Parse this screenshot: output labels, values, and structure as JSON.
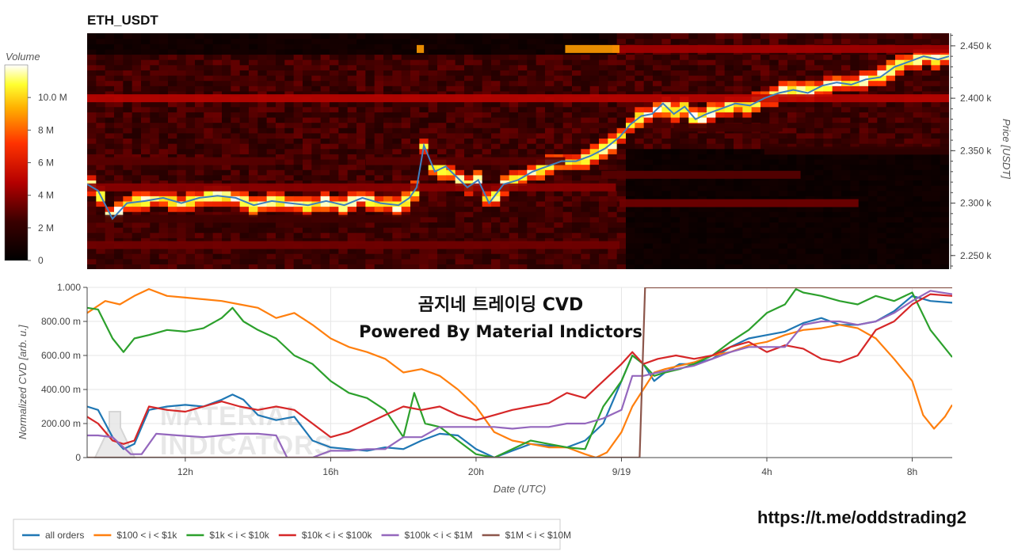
{
  "title": "ETH_USDT",
  "overlay": {
    "line1": "곰지네 트레이딩 CVD",
    "line2": "Powered By Material Indictors"
  },
  "url": "https://t.me/oddstrading2",
  "watermark": [
    "MATERIAL",
    "INDICATORS"
  ],
  "colorbar": {
    "title": "Volume",
    "ticks": [
      "0",
      "2 M",
      "4 M",
      "6 M",
      "8 M",
      "10.0 M"
    ],
    "values": [
      0,
      2,
      4,
      6,
      8,
      10
    ],
    "max": 12
  },
  "heatmap_axis": {
    "ylabel": "Price [USDT]",
    "ticks": [
      "2.250 k",
      "2.300 k",
      "2.350 k",
      "2.400 k",
      "2.450 k"
    ],
    "tick_values": [
      2250,
      2300,
      2350,
      2400,
      2450
    ],
    "ylim": [
      2237,
      2462
    ]
  },
  "cvd_axis": {
    "ylabel": "Normalized CVD [arb. u.]",
    "xlabel": "Date (UTC)",
    "yticks": [
      "0",
      "200.00 m",
      "400.00 m",
      "600.00 m",
      "800.00 m",
      "1.000"
    ],
    "ytick_values": [
      0,
      0.2,
      0.4,
      0.6,
      0.8,
      1.0
    ],
    "xticks": [
      "12h",
      "16h",
      "20h",
      "9/19",
      "4h",
      "8h"
    ],
    "xtick_values": [
      12,
      16,
      20,
      24,
      28,
      32
    ]
  },
  "chart_data": [
    {
      "type": "heatmap",
      "title": "ETH_USDT",
      "ylabel": "Price [USDT]",
      "xlim": [
        9.3,
        33.1
      ],
      "ylim": [
        2237,
        2462
      ],
      "price_path": {
        "x": [
          9.3,
          9.6,
          10.0,
          10.4,
          10.9,
          11.4,
          11.9,
          12.4,
          12.9,
          13.4,
          13.9,
          14.4,
          14.9,
          15.4,
          15.9,
          16.4,
          16.9,
          17.4,
          17.9,
          18.2,
          18.4,
          18.6,
          18.9,
          19.2,
          19.5,
          19.8,
          20.1,
          20.4,
          20.8,
          21.2,
          21.6,
          22.0,
          22.4,
          22.8,
          23.2,
          23.6,
          24.0,
          24.3,
          24.6,
          24.9,
          25.2,
          25.5,
          25.8,
          26.1,
          26.4,
          26.8,
          27.2,
          27.6,
          28.0,
          28.4,
          28.8,
          29.2,
          29.6,
          30.0,
          30.4,
          30.8,
          31.2,
          31.6,
          32.0,
          32.4,
          32.8,
          33.1
        ],
        "y": [
          2318,
          2312,
          2285,
          2300,
          2302,
          2305,
          2300,
          2305,
          2307,
          2305,
          2298,
          2302,
          2300,
          2298,
          2302,
          2298,
          2305,
          2300,
          2298,
          2305,
          2315,
          2355,
          2330,
          2335,
          2325,
          2315,
          2322,
          2300,
          2318,
          2322,
          2330,
          2335,
          2340,
          2340,
          2345,
          2352,
          2363,
          2375,
          2383,
          2385,
          2395,
          2385,
          2392,
          2380,
          2385,
          2390,
          2395,
          2393,
          2400,
          2405,
          2408,
          2405,
          2412,
          2415,
          2413,
          2418,
          2420,
          2430,
          2435,
          2440,
          2437,
          2440
        ]
      },
      "levels": [
        {
          "price": 2400,
          "x": [
            9.3,
            33.1
          ],
          "value": 5
        },
        {
          "price": 2447,
          "x": [
            23.8,
            33.1
          ],
          "value": 4.5
        },
        {
          "price": 2447,
          "x": [
            22.5,
            24.0
          ],
          "value": 9
        },
        {
          "price": 2447,
          "x": [
            18.4,
            18.6
          ],
          "value": 9
        },
        {
          "price": 2315,
          "x": [
            9.3,
            23.9
          ],
          "value": 4
        },
        {
          "price": 2300,
          "x": [
            24.0,
            30.6
          ],
          "value": 3.5
        },
        {
          "price": 2260,
          "x": [
            9.3,
            24.0
          ],
          "value": 3.5
        },
        {
          "price": 2340,
          "x": [
            9.3,
            14.5
          ],
          "value": 3
        },
        {
          "price": 2340,
          "x": [
            17.0,
            22.5
          ],
          "value": 3
        },
        {
          "price": 2327,
          "x": [
            23.5,
            29.0
          ],
          "value": 3
        },
        {
          "price": 2372,
          "x": [
            25.5,
            28.5
          ],
          "value": 2.5
        },
        {
          "price": 2285,
          "x": [
            9.3,
            18.5
          ],
          "value": 2.5
        },
        {
          "price": 2350,
          "x": [
            28.0,
            33.1
          ],
          "value": 2
        }
      ]
    },
    {
      "type": "line",
      "xlabel": "Date (UTC)",
      "ylabel": "Normalized CVD [arb. u.]",
      "xlim": [
        9.3,
        33.1
      ],
      "ylim": [
        0,
        1.0
      ],
      "series": [
        {
          "name": "all orders",
          "color": "#1f77b4",
          "x": [
            9.3,
            9.6,
            10.0,
            10.3,
            10.6,
            11.0,
            11.5,
            12.0,
            12.5,
            13.0,
            13.3,
            13.6,
            14.0,
            14.5,
            15.0,
            15.5,
            16.0,
            16.5,
            17.0,
            17.5,
            18.0,
            18.5,
            19.0,
            19.5,
            20.0,
            20.5,
            21.0,
            21.5,
            22.0,
            22.5,
            23.0,
            23.5,
            24.0,
            24.3,
            24.6,
            24.9,
            25.2,
            25.6,
            26.0,
            26.5,
            27.0,
            27.5,
            28.0,
            28.5,
            29.0,
            29.5,
            30.0,
            30.5,
            31.0,
            31.5,
            32.0,
            32.5,
            33.1
          ],
          "y": [
            0.3,
            0.28,
            0.12,
            0.05,
            0.08,
            0.28,
            0.3,
            0.31,
            0.3,
            0.34,
            0.37,
            0.34,
            0.25,
            0.22,
            0.24,
            0.1,
            0.06,
            0.05,
            0.04,
            0.06,
            0.05,
            0.1,
            0.14,
            0.13,
            0.05,
            0.0,
            0.04,
            0.08,
            0.07,
            0.06,
            0.1,
            0.2,
            0.45,
            0.6,
            0.55,
            0.45,
            0.5,
            0.55,
            0.55,
            0.58,
            0.65,
            0.7,
            0.72,
            0.74,
            0.79,
            0.82,
            0.78,
            0.78,
            0.8,
            0.86,
            0.95,
            0.92,
            0.91
          ]
        },
        {
          "name": "$100 < i < $1k",
          "color": "#ff7f0e",
          "x": [
            9.3,
            9.8,
            10.2,
            10.6,
            11.0,
            11.5,
            12.0,
            12.5,
            13.0,
            13.5,
            14.0,
            14.5,
            15.0,
            15.5,
            16.0,
            16.5,
            17.0,
            17.5,
            18.0,
            18.5,
            19.0,
            19.5,
            20.0,
            20.5,
            21.0,
            21.5,
            22.0,
            22.5,
            23.0,
            23.3,
            23.6,
            24.0,
            24.3,
            24.6,
            24.9,
            25.2,
            25.6,
            26.0,
            26.5,
            27.0,
            27.5,
            28.0,
            28.5,
            29.0,
            29.5,
            30.0,
            30.5,
            31.0,
            31.5,
            32.0,
            32.3,
            32.6,
            32.9,
            33.1
          ],
          "y": [
            0.85,
            0.92,
            0.9,
            0.95,
            0.99,
            0.95,
            0.94,
            0.93,
            0.92,
            0.9,
            0.88,
            0.82,
            0.85,
            0.78,
            0.7,
            0.65,
            0.62,
            0.58,
            0.5,
            0.52,
            0.48,
            0.4,
            0.3,
            0.15,
            0.1,
            0.08,
            0.06,
            0.06,
            0.02,
            0.0,
            0.03,
            0.15,
            0.3,
            0.4,
            0.5,
            0.52,
            0.54,
            0.56,
            0.6,
            0.62,
            0.66,
            0.68,
            0.72,
            0.75,
            0.76,
            0.78,
            0.76,
            0.7,
            0.58,
            0.45,
            0.25,
            0.17,
            0.24,
            0.31
          ]
        },
        {
          "name": "$1k < i < $10k",
          "color": "#2ca02c",
          "x": [
            9.3,
            9.6,
            10.0,
            10.3,
            10.6,
            11.0,
            11.5,
            12.0,
            12.5,
            13.0,
            13.3,
            13.6,
            14.0,
            14.5,
            15.0,
            15.5,
            16.0,
            16.5,
            17.0,
            17.5,
            18.0,
            18.3,
            18.6,
            19.0,
            19.5,
            20.0,
            20.5,
            21.0,
            21.5,
            22.0,
            22.5,
            23.0,
            23.5,
            24.0,
            24.3,
            24.6,
            24.9,
            25.2,
            25.6,
            26.0,
            26.5,
            27.0,
            27.5,
            28.0,
            28.5,
            28.8,
            29.0,
            29.5,
            30.0,
            30.5,
            31.0,
            31.5,
            32.0,
            32.5,
            33.1
          ],
          "y": [
            0.88,
            0.87,
            0.7,
            0.62,
            0.7,
            0.72,
            0.75,
            0.74,
            0.76,
            0.82,
            0.88,
            0.8,
            0.75,
            0.7,
            0.6,
            0.55,
            0.45,
            0.38,
            0.35,
            0.28,
            0.12,
            0.38,
            0.2,
            0.18,
            0.1,
            0.02,
            0.0,
            0.05,
            0.1,
            0.08,
            0.06,
            0.05,
            0.3,
            0.45,
            0.6,
            0.55,
            0.48,
            0.5,
            0.52,
            0.55,
            0.6,
            0.68,
            0.75,
            0.85,
            0.9,
            0.99,
            0.97,
            0.95,
            0.92,
            0.9,
            0.95,
            0.92,
            0.97,
            0.75,
            0.59
          ]
        },
        {
          "name": "$10k < i < $100k",
          "color": "#d62728",
          "x": [
            9.3,
            9.6,
            10.0,
            10.3,
            10.6,
            11.0,
            11.5,
            12.0,
            12.5,
            13.0,
            13.5,
            14.0,
            14.5,
            15.0,
            15.5,
            16.0,
            16.5,
            17.0,
            17.5,
            18.0,
            18.5,
            19.0,
            19.5,
            20.0,
            20.5,
            21.0,
            21.5,
            22.0,
            22.5,
            23.0,
            23.5,
            24.0,
            24.3,
            24.6,
            25.0,
            25.5,
            26.0,
            26.5,
            27.0,
            27.5,
            28.0,
            28.5,
            29.0,
            29.5,
            30.0,
            30.5,
            31.0,
            31.5,
            32.0,
            32.5,
            33.1
          ],
          "y": [
            0.24,
            0.2,
            0.1,
            0.08,
            0.1,
            0.3,
            0.28,
            0.27,
            0.3,
            0.33,
            0.3,
            0.28,
            0.3,
            0.28,
            0.2,
            0.12,
            0.15,
            0.2,
            0.25,
            0.3,
            0.28,
            0.3,
            0.25,
            0.22,
            0.25,
            0.28,
            0.3,
            0.32,
            0.38,
            0.35,
            0.45,
            0.55,
            0.62,
            0.55,
            0.58,
            0.6,
            0.58,
            0.6,
            0.65,
            0.68,
            0.62,
            0.66,
            0.64,
            0.58,
            0.56,
            0.6,
            0.75,
            0.8,
            0.9,
            0.96,
            0.95
          ]
        },
        {
          "name": "$100k < i < $1M",
          "color": "#9467bd",
          "x": [
            9.3,
            9.6,
            10.0,
            10.5,
            10.8,
            11.2,
            11.8,
            12.5,
            13.0,
            13.5,
            14.0,
            14.5,
            14.8,
            15.5,
            16.0,
            16.5,
            17.0,
            17.5,
            18.0,
            18.5,
            19.0,
            19.5,
            20.0,
            20.5,
            21.0,
            21.5,
            22.0,
            22.5,
            23.0,
            23.5,
            24.0,
            24.3,
            24.6,
            25.0,
            25.5,
            26.0,
            26.5,
            27.0,
            27.5,
            28.0,
            28.5,
            29.0,
            29.5,
            30.0,
            30.5,
            31.0,
            31.5,
            32.0,
            32.5,
            33.1
          ],
          "y": [
            0.13,
            0.13,
            0.12,
            0.02,
            0.02,
            0.14,
            0.13,
            0.12,
            0.13,
            0.14,
            0.14,
            0.13,
            0.0,
            0.0,
            0.04,
            0.04,
            0.05,
            0.05,
            0.12,
            0.12,
            0.18,
            0.18,
            0.18,
            0.18,
            0.17,
            0.18,
            0.18,
            0.2,
            0.2,
            0.23,
            0.28,
            0.48,
            0.48,
            0.5,
            0.52,
            0.54,
            0.58,
            0.62,
            0.65,
            0.65,
            0.65,
            0.78,
            0.8,
            0.8,
            0.78,
            0.8,
            0.85,
            0.92,
            0.98,
            0.96
          ]
        },
        {
          "name": "$1M < i < $10M",
          "color": "#8c564b",
          "x": [
            9.3,
            24.5,
            24.65,
            33.1
          ],
          "y": [
            0.0,
            0.0,
            1.0,
            1.0
          ]
        }
      ]
    }
  ],
  "legend": [
    {
      "label": "all orders",
      "color": "#1f77b4"
    },
    {
      "label": "$100 < i < $1k",
      "color": "#ff7f0e"
    },
    {
      "label": "$1k < i < $10k",
      "color": "#2ca02c"
    },
    {
      "label": "$10k < i < $100k",
      "color": "#d62728"
    },
    {
      "label": "$100k < i < $1M",
      "color": "#9467bd"
    },
    {
      "label": "$1M < i < $10M",
      "color": "#8c564b"
    }
  ]
}
